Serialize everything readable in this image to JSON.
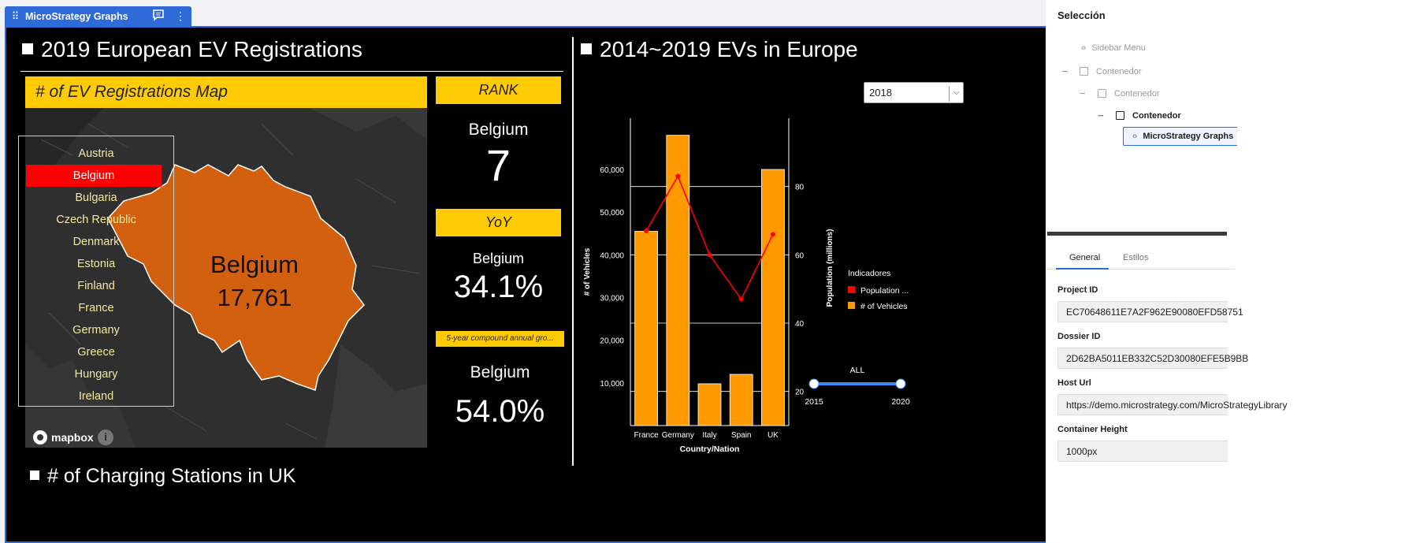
{
  "block_tag": {
    "drag_icon": "drag-handle-icon",
    "title": "MicroStrategy Graphs",
    "comment_icon": "comment-icon",
    "more_icon": "more-vertical-icon"
  },
  "dashboard": {
    "left_title": "2019 European EV Registrations",
    "right_title": "2014~2019 EVs in Europe",
    "bottom_title": "# of Charging Stations in UK",
    "map": {
      "header": "# of EV Registrations Map",
      "countries": [
        "Austria",
        "Belgium",
        "Bulgaria",
        "Czech Republic",
        "Denmark",
        "Estonia",
        "Finland",
        "France",
        "Germany",
        "Greece",
        "Hungary",
        "Ireland"
      ],
      "selected_country": "Belgium",
      "label_name": "Belgium",
      "label_value": "17,761",
      "attribution": "mapbox",
      "info_icon": "info-icon",
      "shape_color": "#d3600f",
      "highlight_color": "#ff0000"
    },
    "rank": {
      "header": "RANK",
      "country": "Belgium",
      "value": "7"
    },
    "yoy": {
      "header": "YoY",
      "country": "Belgium",
      "value": "34.1%"
    },
    "cagr": {
      "header": "5-year compound annual gro...",
      "country": "Belgium",
      "value": "54.0%"
    },
    "year_select": {
      "value": "2018",
      "chevron_icon": "chevron-down-icon"
    },
    "range_slider": {
      "label": "ALL",
      "min_label": "2015",
      "max_label": "2020",
      "min": 2015,
      "max": 2020
    }
  },
  "chart_data": {
    "type": "bar",
    "categories": [
      "France",
      "Germany",
      "Italy",
      "Spain",
      "UK"
    ],
    "series": [
      {
        "name": "# of Vehicles",
        "type": "bar",
        "axis": "left",
        "color": "#ff9900",
        "values": [
          45500,
          68000,
          9800,
          12000,
          60000
        ]
      },
      {
        "name": "Population ...",
        "type": "line",
        "axis": "right",
        "color": "#ff0000",
        "values": [
          67,
          83,
          60,
          47,
          66
        ]
      }
    ],
    "xlabel": "Country/Nation",
    "ylabel": "# of Vehicles",
    "y2label": "Population (millions)",
    "ylim": [
      0,
      72000
    ],
    "y2lim": [
      10,
      100
    ],
    "yticks": [
      "10,000",
      "20,000",
      "30,000",
      "40,000",
      "50,000",
      "60,000"
    ],
    "y2ticks": [
      "20",
      "40",
      "60",
      "80"
    ],
    "grid": true,
    "legend": {
      "title": "Indicadores",
      "placement": "right",
      "items": [
        "Population ...",
        "# of Vehicles"
      ]
    }
  },
  "panel": {
    "title": "Selección",
    "tree": [
      {
        "label": "Sidebar Menu",
        "icon": "code-icon"
      },
      {
        "label": "Contenedor",
        "icon": "container-icon",
        "toggle": "−"
      },
      {
        "label": "Contenedor",
        "icon": "container-icon",
        "toggle": "−"
      },
      {
        "label": "Contenedor",
        "icon": "container-icon",
        "toggle": "−"
      },
      {
        "label": "MicroStrategy Graphs",
        "icon": "code-icon"
      }
    ],
    "tabs": [
      "General",
      "Estilos"
    ],
    "fields": [
      {
        "label": "Project ID",
        "value": "EC70648611E7A2F962E90080EFD58751"
      },
      {
        "label": "Dossier ID",
        "value": "2D62BA5011EB332C52D30080EFE5B9BB"
      },
      {
        "label": "Host Url",
        "value": "https://demo.microstrategy.com/MicroStrategyLibrary"
      },
      {
        "label": "Container Height",
        "value": "1000px"
      }
    ]
  }
}
